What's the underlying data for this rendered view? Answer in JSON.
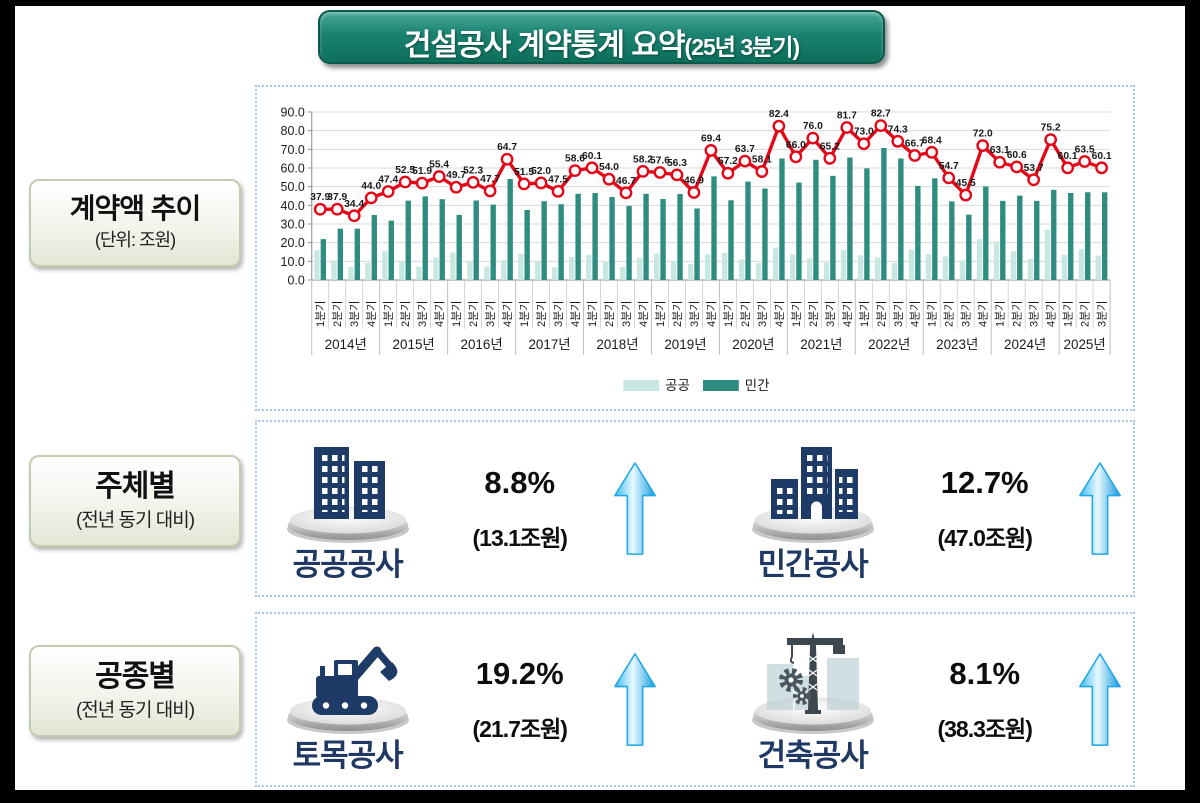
{
  "title": {
    "main": "건설공사 계약통계 요약",
    "sub": "(25년 3분기)"
  },
  "sections": {
    "trend": {
      "label": "계약액 추이",
      "sublabel": "(단위: 조원)"
    },
    "subject": {
      "label": "주체별",
      "sublabel": "(전년 동기 대비)",
      "items": [
        {
          "name": "공공공사",
          "icon": "public-buildings",
          "percent": "8.8%",
          "amount": "(13.1조원)",
          "direction": "up"
        },
        {
          "name": "민간공사",
          "icon": "private-buildings",
          "percent": "12.7%",
          "amount": "(47.0조원)",
          "direction": "up"
        }
      ]
    },
    "worktype": {
      "label": "공종별",
      "sublabel": "(전년 동기 대비)",
      "items": [
        {
          "name": "토목공사",
          "icon": "excavator",
          "percent": "19.2%",
          "amount": "(21.7조원)",
          "direction": "up"
        },
        {
          "name": "건축공사",
          "icon": "crane",
          "percent": "8.1%",
          "amount": "(38.3조원)",
          "direction": "up"
        }
      ]
    }
  },
  "chart_data": {
    "type": "bar+line",
    "title": "계약액 추이",
    "unit": "조원",
    "ylim": [
      0,
      90
    ],
    "ytick_step": 10,
    "grid": true,
    "legend_position": "bottom",
    "quarter_labels": [
      "1분기",
      "2분기",
      "3분기",
      "4분기"
    ],
    "years": [
      {
        "label": "2014년",
        "n": 4
      },
      {
        "label": "2015년",
        "n": 4
      },
      {
        "label": "2016년",
        "n": 4
      },
      {
        "label": "2017년",
        "n": 4
      },
      {
        "label": "2018년",
        "n": 4
      },
      {
        "label": "2019년",
        "n": 4
      },
      {
        "label": "2020년",
        "n": 4
      },
      {
        "label": "2021년",
        "n": 4
      },
      {
        "label": "2022년",
        "n": 4
      },
      {
        "label": "2023년",
        "n": 4
      },
      {
        "label": "2024년",
        "n": 4
      },
      {
        "label": "2025년",
        "n": 3
      }
    ],
    "series": [
      {
        "name": "공공",
        "type": "bar",
        "color": "#c9e7e2",
        "values": [
          16.0,
          10.4,
          6.9,
          9.2,
          15.6,
          10.0,
          7.1,
          12.1,
          14.8,
          9.7,
          7.3,
          10.6,
          14.0,
          9.8,
          6.9,
          12.4,
          13.5,
          9.6,
          7.0,
          12.0,
          14.2,
          10.2,
          8.6,
          13.9,
          14.5,
          11.0,
          9.1,
          17.3,
          13.8,
          11.6,
          9.4,
          16.1,
          13.2,
          12.0,
          9.2,
          16.3,
          13.9,
          12.6,
          10.5,
          21.9,
          20.7,
          15.4,
          11.3,
          26.9,
          13.5,
          16.5,
          13.1
        ]
      },
      {
        "name": "민간",
        "type": "bar",
        "color": "#2f8c80",
        "values": [
          21.9,
          27.5,
          27.5,
          34.8,
          31.8,
          42.5,
          44.8,
          43.3,
          34.9,
          42.6,
          40.4,
          54.1,
          37.5,
          42.2,
          40.6,
          46.2,
          46.6,
          44.4,
          39.7,
          46.2,
          43.4,
          46.1,
          38.3,
          55.5,
          42.7,
          52.7,
          49.0,
          65.1,
          52.2,
          64.4,
          55.8,
          65.6,
          59.8,
          70.7,
          65.1,
          50.4,
          54.5,
          42.1,
          35.0,
          50.1,
          42.4,
          45.2,
          42.4,
          48.3,
          46.6,
          47.0,
          47.0
        ]
      }
    ],
    "line": {
      "name": "계약액 합계",
      "color": "#e30617",
      "point_labels": true,
      "values": [
        37.9,
        37.9,
        34.4,
        44.0,
        47.4,
        52.5,
        51.9,
        55.4,
        49.7,
        52.3,
        47.7,
        64.7,
        51.5,
        52.0,
        47.5,
        58.6,
        60.1,
        54.0,
        46.7,
        58.2,
        57.6,
        56.3,
        46.9,
        69.4,
        57.2,
        63.7,
        58.1,
        82.4,
        66.0,
        76.0,
        65.2,
        81.7,
        73.0,
        82.7,
        74.3,
        66.7,
        68.4,
        54.7,
        45.5,
        72.0,
        63.1,
        60.6,
        53.7,
        75.2,
        60.1,
        63.5,
        60.1
      ]
    },
    "legend": [
      {
        "label": "공공",
        "color": "#c9e7e2"
      },
      {
        "label": "민간",
        "color": "#2f8c80"
      }
    ]
  },
  "colors": {
    "title_bg": "#157a67",
    "bar_public": "#c9e7e2",
    "bar_private": "#2f8c80",
    "line": "#e30617",
    "item_label": "#1f3864",
    "arrow_blue": "#2fb4ef",
    "panel_border": "#a8c6e5"
  }
}
